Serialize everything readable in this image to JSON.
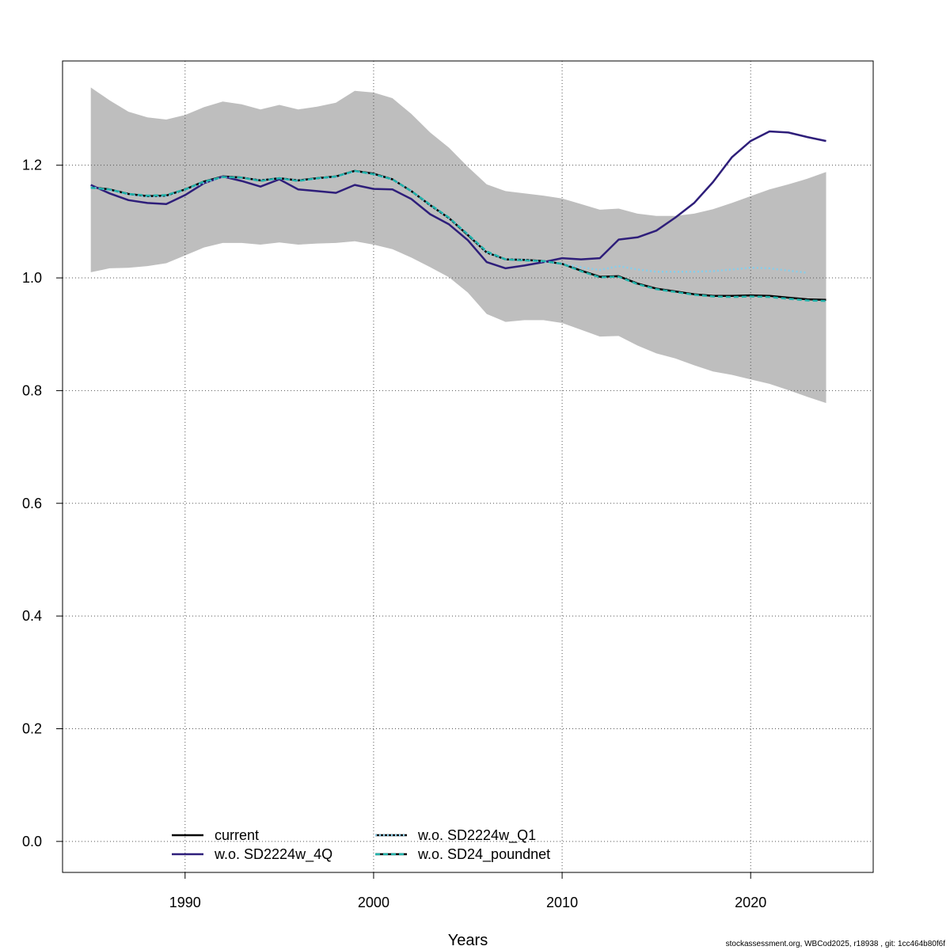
{
  "chart_data": {
    "type": "line",
    "xlabel": "Years",
    "ylabel": "",
    "xlim": [
      1983.5,
      2026.5
    ],
    "ylim": [
      -0.055,
      1.385
    ],
    "xticks": [
      1990,
      2000,
      2010,
      2020
    ],
    "yticks": [
      0.0,
      0.2,
      0.4,
      0.6,
      0.8,
      1.0,
      1.2
    ],
    "ytick_labels": [
      "0.0",
      "0.2",
      "0.4",
      "0.6",
      "0.8",
      "1.0",
      "1.2"
    ],
    "grid": true,
    "legend_position": "bottom-left",
    "band": {
      "x": [
        1985,
        1986,
        1987,
        1988,
        1989,
        1990,
        1991,
        1992,
        1993,
        1994,
        1995,
        1996,
        1997,
        1998,
        1999,
        2000,
        2001,
        2002,
        2003,
        2004,
        2005,
        2006,
        2007,
        2008,
        2009,
        2010,
        2011,
        2012,
        2013,
        2014,
        2015,
        2016,
        2017,
        2018,
        2019,
        2020,
        2021,
        2022,
        2023,
        2024
      ],
      "upper": [
        1.338,
        1.315,
        1.295,
        1.285,
        1.281,
        1.289,
        1.303,
        1.313,
        1.308,
        1.299,
        1.307,
        1.299,
        1.304,
        1.311,
        1.332,
        1.329,
        1.319,
        1.291,
        1.258,
        1.231,
        1.197,
        1.166,
        1.154,
        1.15,
        1.146,
        1.141,
        1.131,
        1.121,
        1.123,
        1.114,
        1.11,
        1.11,
        1.114,
        1.122,
        1.133,
        1.145,
        1.157,
        1.166,
        1.176,
        1.188
      ],
      "lower": [
        1.01,
        1.017,
        1.018,
        1.021,
        1.026,
        1.04,
        1.054,
        1.062,
        1.062,
        1.059,
        1.063,
        1.059,
        1.061,
        1.062,
        1.065,
        1.059,
        1.051,
        1.036,
        1.019,
        1.001,
        0.974,
        0.936,
        0.922,
        0.925,
        0.925,
        0.92,
        0.908,
        0.896,
        0.897,
        0.88,
        0.866,
        0.857,
        0.845,
        0.834,
        0.828,
        0.82,
        0.812,
        0.801,
        0.789,
        0.778
      ],
      "color": "#bebebe"
    },
    "series": [
      {
        "name": "current",
        "color": "#000000",
        "dash": "solid",
        "x": [
          1985,
          1986,
          1987,
          1988,
          1989,
          1990,
          1991,
          1992,
          1993,
          1994,
          1995,
          1996,
          1997,
          1998,
          1999,
          2000,
          2001,
          2002,
          2003,
          2004,
          2005,
          2006,
          2007,
          2008,
          2009,
          2010,
          2011,
          2012,
          2013,
          2014,
          2015,
          2016,
          2017,
          2018,
          2019,
          2020,
          2021,
          2022,
          2023,
          2024
        ],
        "values": [
          1.161,
          1.157,
          1.149,
          1.145,
          1.146,
          1.157,
          1.171,
          1.18,
          1.178,
          1.173,
          1.177,
          1.173,
          1.177,
          1.18,
          1.19,
          1.185,
          1.175,
          1.154,
          1.129,
          1.106,
          1.076,
          1.045,
          1.033,
          1.032,
          1.03,
          1.025,
          1.013,
          1.002,
          1.003,
          0.99,
          0.981,
          0.976,
          0.971,
          0.968,
          0.968,
          0.969,
          0.968,
          0.965,
          0.962,
          0.961
        ]
      },
      {
        "name": "w.o. SD2224w_4Q",
        "color": "#2e1e7a",
        "dash": "solid",
        "x": [
          1985,
          1986,
          1987,
          1988,
          1989,
          1990,
          1991,
          1992,
          1993,
          1994,
          1995,
          1996,
          1997,
          1998,
          1999,
          2000,
          2001,
          2002,
          2003,
          2004,
          2005,
          2006,
          2007,
          2008,
          2009,
          2010,
          2011,
          2012,
          2013,
          2014,
          2015,
          2016,
          2017,
          2018,
          2019,
          2020,
          2021,
          2022,
          2023,
          2024
        ],
        "values": [
          1.165,
          1.15,
          1.138,
          1.133,
          1.131,
          1.147,
          1.168,
          1.18,
          1.172,
          1.162,
          1.175,
          1.157,
          1.154,
          1.151,
          1.165,
          1.158,
          1.157,
          1.14,
          1.113,
          1.095,
          1.067,
          1.028,
          1.017,
          1.022,
          1.028,
          1.035,
          1.033,
          1.035,
          1.068,
          1.072,
          1.084,
          1.107,
          1.133,
          1.17,
          1.214,
          1.243,
          1.26,
          1.258,
          1.25,
          1.243
        ]
      },
      {
        "name": "w.o. SD2224w_Q1",
        "color": "#87ceeb",
        "dash": "dotted",
        "x": [
          1985,
          1986,
          1987,
          1988,
          1989,
          1990,
          1991,
          1992,
          1993,
          1994,
          1995,
          1996,
          1997,
          1998,
          1999,
          2000,
          2001,
          2002,
          2003,
          2004,
          2005,
          2006,
          2007,
          2008,
          2009,
          2010,
          2011,
          2012,
          2013,
          2014,
          2015,
          2016,
          2017,
          2018,
          2019,
          2020,
          2021,
          2022,
          2023
        ],
        "values": [
          1.161,
          1.156,
          1.148,
          1.144,
          1.145,
          1.156,
          1.169,
          1.179,
          1.178,
          1.173,
          1.177,
          1.173,
          1.176,
          1.179,
          1.189,
          1.184,
          1.175,
          1.154,
          1.129,
          1.106,
          1.077,
          1.045,
          1.033,
          1.032,
          1.029,
          1.025,
          1.019,
          1.014,
          1.021,
          1.015,
          1.011,
          1.011,
          1.011,
          1.012,
          1.015,
          1.018,
          1.017,
          1.013,
          1.009
        ]
      },
      {
        "name": "w.o. SD24_poundnet",
        "color": "#20b2aa",
        "dash": "dashed",
        "x": [
          1985,
          1986,
          1987,
          1988,
          1989,
          1990,
          1991,
          1992,
          1993,
          1994,
          1995,
          1996,
          1997,
          1998,
          1999,
          2000,
          2001,
          2002,
          2003,
          2004,
          2005,
          2006,
          2007,
          2008,
          2009,
          2010,
          2011,
          2012,
          2013,
          2014,
          2015,
          2016,
          2017,
          2018,
          2019,
          2020,
          2021,
          2022,
          2023,
          2024
        ],
        "values": [
          1.16,
          1.157,
          1.149,
          1.146,
          1.147,
          1.157,
          1.171,
          1.179,
          1.178,
          1.172,
          1.177,
          1.172,
          1.177,
          1.18,
          1.19,
          1.184,
          1.175,
          1.154,
          1.13,
          1.107,
          1.077,
          1.047,
          1.033,
          1.031,
          1.03,
          1.025,
          1.012,
          1.001,
          1.002,
          0.989,
          0.98,
          0.975,
          0.97,
          0.967,
          0.966,
          0.967,
          0.966,
          0.963,
          0.96,
          0.959
        ]
      }
    ]
  },
  "footer": "stockassessment.org, WBCod2025, r18938 , git: 1cc464b80f6f"
}
